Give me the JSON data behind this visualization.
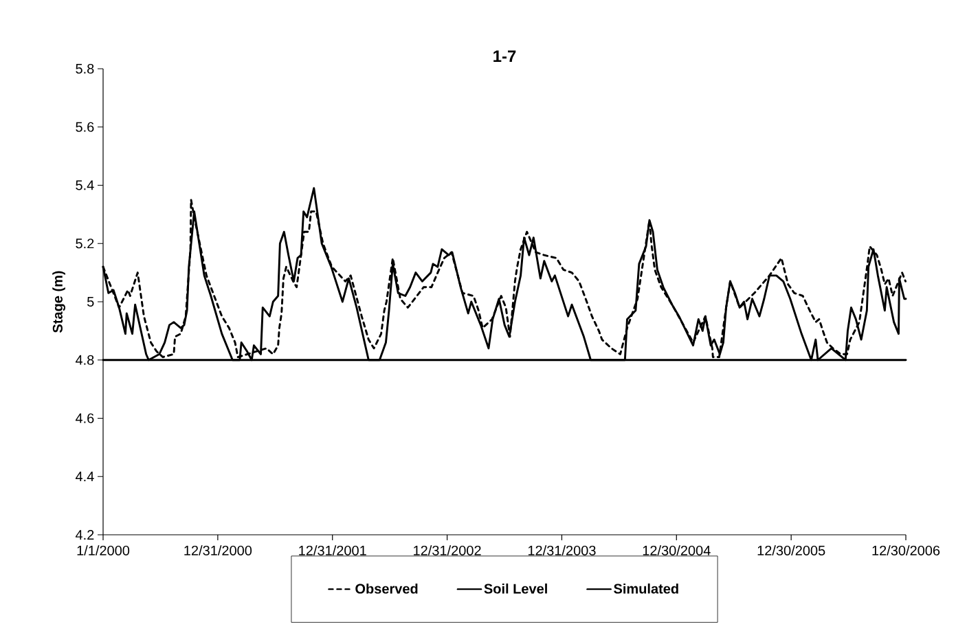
{
  "chart_data": {
    "type": "line",
    "title": "1-7",
    "ylabel": "Stage (m)",
    "xlim": [
      "2000-01-01",
      "2006-12-30"
    ],
    "xticks": [
      {
        "value": "2000-01-01",
        "label": "1/1/2000"
      },
      {
        "value": "2000-12-31",
        "label": "12/31/2000"
      },
      {
        "value": "2001-12-31",
        "label": "12/31/2001"
      },
      {
        "value": "2002-12-31",
        "label": "12/31/2002"
      },
      {
        "value": "2003-12-31",
        "label": "12/31/2003"
      },
      {
        "value": "2004-12-30",
        "label": "12/30/2004"
      },
      {
        "value": "2005-12-30",
        "label": "12/30/2005"
      },
      {
        "value": "2006-12-30",
        "label": "12/30/2006"
      }
    ],
    "ylim": [
      4.2,
      5.8
    ],
    "yticks": [
      4.2,
      4.4,
      4.6,
      4.8,
      5,
      5.2,
      5.4,
      5.6,
      5.8
    ],
    "legend": "bottom",
    "marker": "none",
    "series": [
      {
        "name": "Observed",
        "color": "#000000",
        "line_style": "dashed",
        "x": [
          "2000-01-01",
          "2000-02-21",
          "2000-03-20",
          "2000-03-27",
          "2000-04-20",
          "2000-05-10",
          "2000-06-01",
          "2000-06-19",
          "2000-07-09",
          "2000-08-13",
          "2000-08-17",
          "2000-09-04",
          "2000-09-20",
          "2000-10-05",
          "2000-10-07",
          "2000-10-17",
          "2000-11-25",
          "2001-01-13",
          "2001-02-05",
          "2001-02-24",
          "2001-03-05",
          "2001-06-04",
          "2001-06-25",
          "2001-07-11",
          "2001-07-15",
          "2001-07-22",
          "2001-07-28",
          "2001-08-06",
          "2001-08-28",
          "2001-09-08",
          "2001-09-22",
          "2001-10-02",
          "2001-10-17",
          "2001-10-24",
          "2001-11-09",
          "2001-12-01",
          "2001-12-29",
          "2002-02-10",
          "2002-02-27",
          "2002-04-03",
          "2002-04-25",
          "2002-05-12",
          "2002-06-04",
          "2002-06-14",
          "2002-06-21",
          "2002-07-11",
          "2002-08-04",
          "2002-08-28",
          "2002-10-17",
          "2002-11-11",
          "2002-12-01",
          "2002-12-22",
          "2003-01-14",
          "2003-02-18",
          "2003-03-25",
          "2003-04-10",
          "2003-04-23",
          "2003-05-23",
          "2003-06-21",
          "2003-07-06",
          "2003-07-19",
          "2003-08-04",
          "2003-08-11",
          "2003-08-22",
          "2003-09-11",
          "2003-10-09",
          "2003-11-05",
          "2003-12-14",
          "2004-01-05",
          "2004-02-01",
          "2004-02-24",
          "2004-03-16",
          "2004-04-05",
          "2004-04-27",
          "2004-05-07",
          "2004-06-06",
          "2004-07-04",
          "2004-07-26",
          "2004-08-28",
          "2004-10-05",
          "2004-10-11",
          "2004-10-22",
          "2004-11-11",
          "2004-12-16",
          "2005-02-21",
          "2005-04-01",
          "2005-04-23",
          "2005-04-25",
          "2005-05-15",
          "2005-06-06",
          "2005-06-19",
          "2005-07-19",
          "2005-09-04",
          "2005-10-22",
          "2005-11-29",
          "2005-12-20",
          "2006-01-09",
          "2006-02-05",
          "2006-02-27",
          "2006-03-18",
          "2006-03-29",
          "2006-04-10",
          "2006-04-23",
          "2006-05-12",
          "2006-06-06",
          "2006-06-26",
          "2006-07-06",
          "2006-08-04",
          "2006-08-30",
          "2006-09-06",
          "2006-09-29",
          "2006-10-13",
          "2006-10-24",
          "2006-11-05",
          "2006-11-18",
          "2006-12-18",
          "2006-12-29"
        ],
        "values": [
          5.12,
          4.98,
          5.04,
          5.02,
          5.1,
          4.95,
          4.86,
          4.83,
          4.81,
          4.82,
          4.88,
          4.89,
          4.95,
          5.18,
          5.35,
          5.29,
          5.09,
          4.95,
          4.91,
          4.86,
          4.81,
          4.84,
          4.82,
          4.85,
          4.91,
          4.96,
          5.08,
          5.12,
          5.07,
          5.05,
          5.16,
          5.24,
          5.24,
          5.31,
          5.31,
          5.2,
          5.12,
          5.07,
          5.09,
          4.95,
          4.87,
          4.84,
          4.89,
          4.97,
          5.0,
          5.15,
          5.01,
          4.98,
          5.05,
          5.05,
          5.1,
          5.15,
          5.17,
          5.03,
          5.02,
          4.97,
          4.91,
          4.94,
          5.02,
          4.98,
          4.88,
          5.07,
          5.12,
          5.18,
          5.24,
          5.17,
          5.16,
          5.15,
          5.11,
          5.1,
          5.07,
          5.01,
          4.95,
          4.9,
          4.87,
          4.84,
          4.82,
          4.91,
          5.01,
          5.28,
          5.2,
          5.11,
          5.05,
          4.99,
          4.86,
          4.95,
          4.84,
          4.81,
          4.81,
          4.98,
          5.07,
          4.98,
          5.03,
          5.09,
          5.15,
          5.06,
          5.03,
          5.02,
          4.97,
          4.93,
          4.94,
          4.9,
          4.86,
          4.84,
          4.82,
          4.82,
          4.87,
          4.93,
          5.13,
          5.19,
          5.16,
          5.11,
          5.06,
          5.08,
          5.02,
          5.1,
          5.07
        ]
      },
      {
        "name": "Soil Level",
        "color": "#000000",
        "line_style": "solid",
        "x": [
          "2000-01-01",
          "2006-12-30"
        ],
        "values": [
          4.8,
          4.8
        ]
      },
      {
        "name": "Simulated",
        "color": "#000000",
        "line_style": "solid",
        "x": [
          "2000-01-01",
          "2000-01-18",
          "2000-02-03",
          "2000-02-21",
          "2000-03-12",
          "2000-03-16",
          "2000-04-03",
          "2000-04-12",
          "2000-05-17",
          "2000-05-25",
          "2000-06-28",
          "2000-07-15",
          "2000-07-30",
          "2000-08-13",
          "2000-09-04",
          "2000-09-15",
          "2000-09-24",
          "2000-09-30",
          "2000-10-17",
          "2000-11-18",
          "2000-12-09",
          "2001-01-13",
          "2001-02-16",
          "2001-03-11",
          "2001-03-16",
          "2001-04-03",
          "2001-04-18",
          "2001-04-25",
          "2001-05-17",
          "2001-05-23",
          "2001-06-14",
          "2001-06-25",
          "2001-07-11",
          "2001-07-17",
          "2001-07-30",
          "2001-08-13",
          "2001-08-30",
          "2001-09-11",
          "2001-09-22",
          "2001-09-30",
          "2001-10-11",
          "2001-10-22",
          "2001-11-02",
          "2001-11-27",
          "2001-12-27",
          "2002-02-01",
          "2002-02-21",
          "2002-03-18",
          "2002-04-25",
          "2002-05-30",
          "2002-06-19",
          "2002-06-29",
          "2002-07-11",
          "2002-07-28",
          "2002-08-20",
          "2002-09-04",
          "2002-09-22",
          "2002-10-13",
          "2002-11-09",
          "2002-11-16",
          "2002-12-01",
          "2002-12-14",
          "2003-01-05",
          "2003-01-16",
          "2003-02-12",
          "2003-03-08",
          "2003-03-18",
          "2003-04-17",
          "2003-05-12",
          "2003-05-25",
          "2003-06-14",
          "2003-07-02",
          "2003-07-17",
          "2003-08-04",
          "2003-08-22",
          "2003-09-02",
          "2003-09-18",
          "2003-10-02",
          "2003-10-24",
          "2003-11-05",
          "2003-11-29",
          "2003-12-09",
          "2004-01-20",
          "2004-02-01",
          "2004-03-10",
          "2004-04-01",
          "2004-07-19",
          "2004-07-26",
          "2004-08-22",
          "2004-09-02",
          "2004-09-24",
          "2004-10-05",
          "2004-10-16",
          "2004-10-30",
          "2004-11-18",
          "2004-12-16",
          "2005-01-07",
          "2005-02-21",
          "2005-03-10",
          "2005-03-23",
          "2005-04-01",
          "2005-04-18",
          "2005-04-29",
          "2005-05-17",
          "2005-05-28",
          "2005-06-06",
          "2005-06-19",
          "2005-07-04",
          "2005-07-19",
          "2005-08-02",
          "2005-08-13",
          "2005-08-28",
          "2005-09-20",
          "2005-10-05",
          "2005-10-22",
          "2005-11-13",
          "2005-12-05",
          "2005-12-27",
          "2006-02-01",
          "2006-03-04",
          "2006-03-18",
          "2006-03-25",
          "2006-05-07",
          "2006-06-21",
          "2006-06-28",
          "2006-07-09",
          "2006-07-24",
          "2006-08-10",
          "2006-08-28",
          "2006-09-02",
          "2006-09-18",
          "2006-10-02",
          "2006-10-24",
          "2006-10-30",
          "2006-11-22",
          "2006-12-07",
          "2006-12-09",
          "2006-12-25",
          "2006-12-30"
        ],
        "values": [
          5.12,
          5.03,
          5.04,
          4.98,
          4.89,
          4.96,
          4.89,
          4.99,
          4.82,
          4.8,
          4.82,
          4.86,
          4.92,
          4.93,
          4.91,
          4.92,
          4.97,
          5.12,
          5.31,
          5.09,
          5.02,
          4.89,
          4.8,
          4.8,
          4.86,
          4.83,
          4.8,
          4.85,
          4.82,
          4.98,
          4.95,
          5.0,
          5.02,
          5.2,
          5.24,
          5.16,
          5.07,
          5.15,
          5.16,
          5.31,
          5.29,
          5.34,
          5.39,
          5.2,
          5.12,
          5.0,
          5.08,
          4.98,
          4.8,
          4.8,
          4.86,
          4.97,
          5.13,
          5.03,
          5.02,
          5.05,
          5.1,
          5.07,
          5.1,
          5.13,
          5.12,
          5.18,
          5.16,
          5.17,
          5.05,
          4.96,
          5.0,
          4.92,
          4.84,
          4.94,
          5.01,
          4.92,
          4.88,
          5.0,
          5.09,
          5.22,
          5.16,
          5.22,
          5.08,
          5.14,
          5.07,
          5.09,
          4.95,
          4.99,
          4.88,
          4.8,
          4.8,
          4.94,
          4.97,
          5.13,
          5.19,
          5.28,
          5.24,
          5.11,
          5.05,
          4.99,
          4.95,
          4.85,
          4.94,
          4.9,
          4.95,
          4.85,
          4.87,
          4.82,
          4.86,
          4.98,
          5.07,
          5.03,
          4.98,
          5.0,
          4.94,
          5.01,
          4.95,
          5.01,
          5.09,
          5.09,
          5.07,
          5.01,
          4.89,
          4.8,
          4.87,
          4.8,
          4.84,
          4.8,
          4.9,
          4.98,
          4.94,
          4.87,
          4.97,
          5.12,
          5.18,
          5.09,
          4.97,
          5.05,
          4.93,
          4.89,
          5.08,
          5.01,
          5.01
        ]
      }
    ]
  }
}
